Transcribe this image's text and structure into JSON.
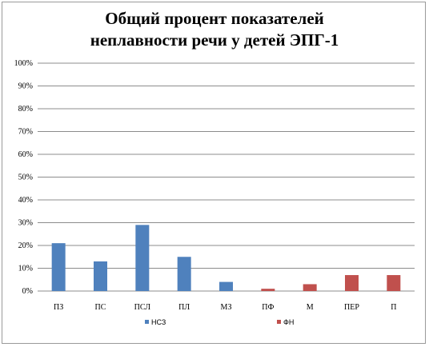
{
  "chart_data": {
    "type": "bar",
    "title_lines": [
      "Общий процент показателей",
      "неплавности речи у детей ЭПГ-1"
    ],
    "categories": [
      "ПЗ",
      "ПС",
      "ПСЛ",
      "ПЛ",
      "МЗ",
      "ПФ",
      "М",
      "ПЕР",
      "П"
    ],
    "series": [
      {
        "name": "НСЗ",
        "color": "#4f81bd",
        "values": [
          21,
          13,
          29,
          15,
          4,
          null,
          null,
          null,
          null
        ]
      },
      {
        "name": "ФН",
        "color": "#c0504d",
        "values": [
          null,
          null,
          null,
          null,
          null,
          1,
          3,
          7,
          7
        ]
      }
    ],
    "y_ticks": [
      "0%",
      "10%",
      "20%",
      "30%",
      "40%",
      "50%",
      "60%",
      "70%",
      "80%",
      "90%",
      "100%"
    ],
    "ylim": [
      0,
      100
    ],
    "grid": true,
    "legend_position": "bottom"
  }
}
